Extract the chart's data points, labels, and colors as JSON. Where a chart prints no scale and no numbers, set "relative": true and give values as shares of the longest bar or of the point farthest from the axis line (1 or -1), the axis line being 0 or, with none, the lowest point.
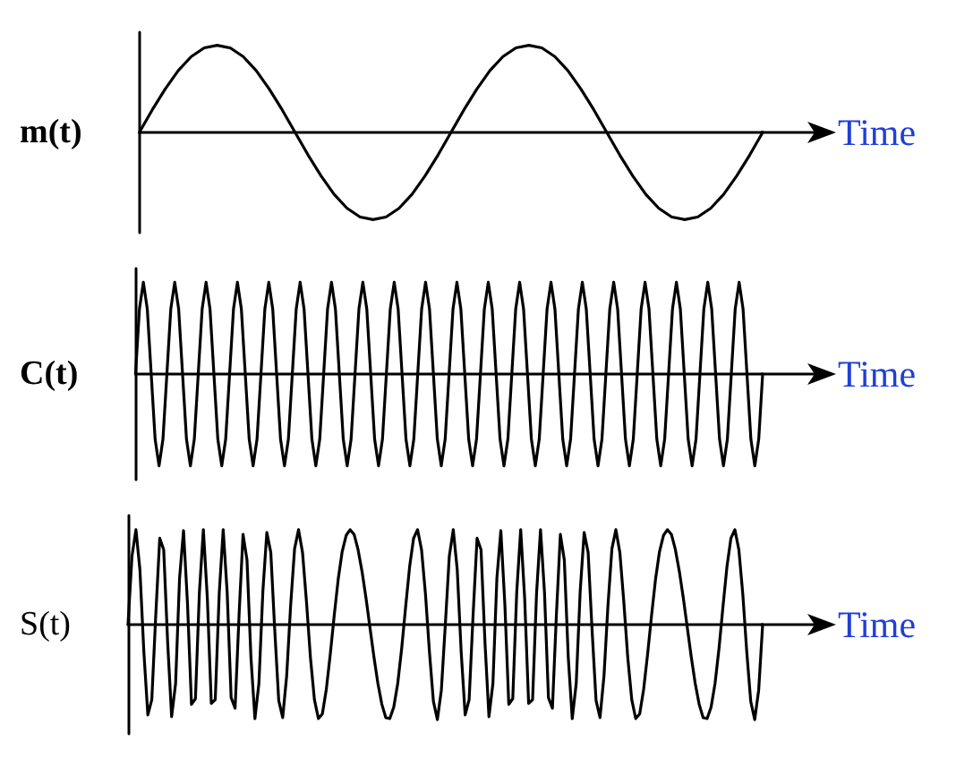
{
  "chart_data": [
    {
      "type": "line",
      "ylabel": "m(t)",
      "xlabel": "Time",
      "relative": true,
      "marker": "none",
      "line_style": "solid",
      "categories": [
        null,
        null,
        null,
        null,
        null,
        null,
        null,
        null,
        null,
        null,
        null,
        null,
        null,
        null,
        null,
        null,
        null,
        null,
        null,
        null,
        null,
        null,
        null,
        null,
        null,
        null,
        null,
        null,
        null,
        null,
        null,
        null,
        null,
        null,
        null,
        null,
        null,
        null,
        null,
        null,
        null,
        null,
        null,
        null,
        null,
        null,
        null,
        null,
        null
      ],
      "series": [
        {
          "color": "#000000",
          "values": [
            0,
            0.26,
            0.5,
            0.71,
            0.87,
            0.97,
            1,
            0.97,
            0.87,
            0.71,
            0.5,
            0.26,
            0,
            -0.26,
            -0.5,
            -0.71,
            -0.87,
            -0.97,
            -1,
            -0.97,
            -0.87,
            -0.71,
            -0.5,
            -0.26,
            0,
            0.26,
            0.5,
            0.71,
            0.87,
            0.97,
            1,
            0.97,
            0.87,
            0.71,
            0.5,
            0.26,
            0,
            -0.26,
            -0.5,
            -0.71,
            -0.87,
            -0.97,
            -1,
            -0.97,
            -0.87,
            -0.71,
            -0.5,
            -0.26,
            0
          ]
        }
      ]
    },
    {
      "type": "line",
      "ylabel": "C(t)",
      "xlabel": "Time",
      "relative": true,
      "marker": "none",
      "line_style": "solid",
      "categories": [
        null,
        null,
        null,
        null,
        null,
        null,
        null,
        null,
        null,
        null,
        null,
        null,
        null,
        null,
        null,
        null,
        null,
        null,
        null,
        null,
        null,
        null,
        null,
        null,
        null,
        null,
        null,
        null,
        null,
        null,
        null,
        null,
        null,
        null,
        null,
        null,
        null,
        null,
        null,
        null,
        null,
        null,
        null,
        null,
        null,
        null,
        null,
        null,
        null,
        null,
        null,
        null,
        null,
        null,
        null,
        null,
        null,
        null,
        null,
        null,
        null,
        null,
        null,
        null,
        null,
        null,
        null,
        null,
        null,
        null,
        null,
        null,
        null,
        null,
        null,
        null,
        null,
        null,
        null,
        null,
        null,
        null,
        null,
        null,
        null,
        null,
        null,
        null,
        null,
        null,
        null,
        null,
        null,
        null,
        null,
        null,
        null,
        null,
        null,
        null,
        null,
        null,
        null,
        null,
        null,
        null,
        null,
        null,
        null,
        null,
        null,
        null,
        null,
        null,
        null,
        null,
        null,
        null,
        null,
        null,
        null,
        null,
        null,
        null,
        null,
        null,
        null,
        null,
        null,
        null,
        null,
        null,
        null,
        null,
        null,
        null,
        null,
        null,
        null,
        null,
        null,
        null,
        null,
        null,
        null,
        null,
        null,
        null,
        null,
        null,
        null,
        null,
        null,
        null,
        null,
        null,
        null,
        null,
        null,
        null,
        null
      ],
      "series": [
        {
          "color": "#000000",
          "values": [
            0,
            0.71,
            1,
            0.71,
            0,
            -0.71,
            -1,
            -0.71,
            0,
            0.71,
            1,
            0.71,
            0,
            -0.71,
            -1,
            -0.71,
            0,
            0.71,
            1,
            0.71,
            0,
            -0.71,
            -1,
            -0.71,
            0,
            0.71,
            1,
            0.71,
            0,
            -0.71,
            -1,
            -0.71,
            0,
            0.71,
            1,
            0.71,
            0,
            -0.71,
            -1,
            -0.71,
            0,
            0.71,
            1,
            0.71,
            0,
            -0.71,
            -1,
            -0.71,
            0,
            0.71,
            1,
            0.71,
            0,
            -0.71,
            -1,
            -0.71,
            0,
            0.71,
            1,
            0.71,
            0,
            -0.71,
            -1,
            -0.71,
            0,
            0.71,
            1,
            0.71,
            0,
            -0.71,
            -1,
            -0.71,
            0,
            0.71,
            1,
            0.71,
            0,
            -0.71,
            -1,
            -0.71,
            0,
            0.71,
            1,
            0.71,
            0,
            -0.71,
            -1,
            -0.71,
            0,
            0.71,
            1,
            0.71,
            0,
            -0.71,
            -1,
            -0.71,
            0,
            0.71,
            1,
            0.71,
            0,
            -0.71,
            -1,
            -0.71,
            0,
            0.71,
            1,
            0.71,
            0,
            -0.71,
            -1,
            -0.71,
            0,
            0.71,
            1,
            0.71,
            0,
            -0.71,
            -1,
            -0.71,
            0,
            0.71,
            1,
            0.71,
            0,
            -0.71,
            -1,
            -0.71,
            0,
            0.71,
            1,
            0.71,
            0,
            -0.71,
            -1,
            -0.71,
            0,
            0.71,
            1,
            0.71,
            0,
            -0.71,
            -1,
            -0.71,
            0,
            0.71,
            1,
            0.71,
            0,
            -0.71,
            -1,
            -0.71,
            0,
            0.71,
            1,
            0.71,
            0,
            -0.71,
            -1,
            -0.71,
            0
          ]
        }
      ]
    },
    {
      "type": "line",
      "ylabel": "S(t)",
      "xlabel": "Time",
      "relative": true,
      "marker": "none",
      "line_style": "solid",
      "categories": [
        null,
        null,
        null,
        null,
        null,
        null,
        null,
        null,
        null,
        null,
        null,
        null,
        null,
        null,
        null,
        null,
        null,
        null,
        null,
        null,
        null,
        null,
        null,
        null,
        null,
        null,
        null,
        null,
        null,
        null,
        null,
        null,
        null,
        null,
        null,
        null,
        null,
        null,
        null,
        null,
        null,
        null,
        null,
        null,
        null,
        null,
        null,
        null,
        null,
        null,
        null,
        null,
        null,
        null,
        null,
        null,
        null,
        null,
        null,
        null,
        null,
        null,
        null,
        null,
        null,
        null,
        null,
        null,
        null,
        null,
        null,
        null,
        null,
        null,
        null,
        null,
        null,
        null,
        null,
        null,
        null,
        null,
        null,
        null,
        null,
        null,
        null,
        null,
        null,
        null,
        null,
        null,
        null,
        null,
        null,
        null,
        null,
        null,
        null,
        null,
        null,
        null,
        null,
        null,
        null,
        null,
        null,
        null,
        null,
        null,
        null,
        null,
        null,
        null,
        null,
        null,
        null,
        null,
        null,
        null,
        null,
        null,
        null,
        null,
        null,
        null,
        null,
        null,
        null,
        null,
        null,
        null,
        null,
        null,
        null,
        null,
        null,
        null,
        null,
        null,
        null,
        null,
        null,
        null,
        null,
        null,
        null,
        null,
        null,
        null,
        null,
        null,
        null,
        null,
        null,
        null,
        null,
        null,
        null,
        null,
        null
      ],
      "series": [
        {
          "color": "#000000",
          "values": [
            0,
            0.72,
            1,
            0.58,
            -0.29,
            -0.95,
            -0.79,
            0.1,
            0.91,
            0.79,
            -0.19,
            -0.97,
            -0.62,
            0.49,
            0.99,
            0.22,
            -0.84,
            -0.78,
            0.34,
            1,
            0.28,
            -0.83,
            -0.79,
            0.33,
            1,
            0.34,
            -0.77,
            -0.88,
            0.1,
            0.95,
            0.68,
            -0.35,
            -0.99,
            -0.62,
            0.35,
            0.97,
            0.76,
            -0.06,
            -0.8,
            -0.98,
            -0.54,
            0.2,
            0.8,
            1,
            0.76,
            0.24,
            -0.35,
            -0.79,
            -0.99,
            -0.94,
            -0.68,
            -0.31,
            0.1,
            0.48,
            0.77,
            0.94,
            1,
            0.95,
            0.79,
            0.56,
            0.28,
            -0.03,
            -0.34,
            -0.62,
            -0.84,
            -0.98,
            -0.99,
            -0.87,
            -0.62,
            -0.25,
            0.19,
            0.61,
            0.91,
            1,
            0.79,
            0.32,
            -0.29,
            -0.81,
            -1,
            -0.69,
            0,
            0.72,
            1,
            0.58,
            -0.29,
            -0.95,
            -0.79,
            0.1,
            0.91,
            0.79,
            -0.19,
            -0.97,
            -0.62,
            0.49,
            0.99,
            0.22,
            -0.84,
            -0.78,
            0.34,
            1,
            0.28,
            -0.83,
            -0.79,
            0.33,
            1,
            0.34,
            -0.77,
            -0.88,
            0.1,
            0.95,
            0.68,
            -0.35,
            -0.99,
            -0.62,
            0.35,
            0.97,
            0.76,
            -0.06,
            -0.8,
            -0.98,
            -0.54,
            0.2,
            0.8,
            1,
            0.76,
            0.24,
            -0.35,
            -0.79,
            -0.99,
            -0.94,
            -0.68,
            -0.31,
            0.1,
            0.48,
            0.77,
            0.94,
            1,
            0.95,
            0.79,
            0.56,
            0.28,
            -0.03,
            -0.34,
            -0.62,
            -0.84,
            -0.98,
            -0.99,
            -0.87,
            -0.62,
            -0.25,
            0.19,
            0.61,
            0.91,
            1,
            0.79,
            0.32,
            -0.29,
            -0.81,
            -1,
            -0.69,
            0
          ]
        }
      ]
    }
  ]
}
